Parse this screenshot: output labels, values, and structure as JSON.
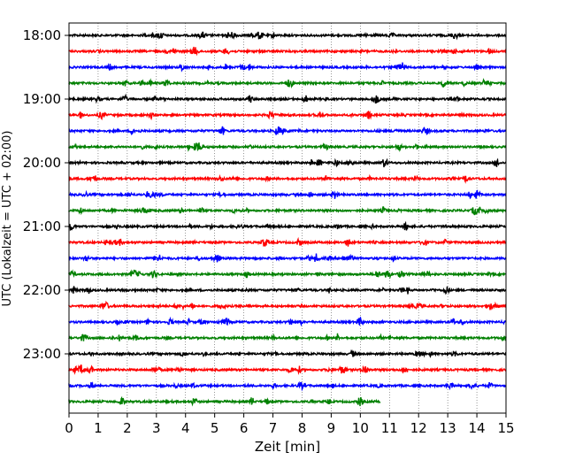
{
  "chart_data": {
    "type": "line",
    "title": "",
    "xlabel": "Zeit  [min]",
    "ylabel": "UTC (Lokalzeit = UTC + 02:00)",
    "xlim": [
      0,
      15
    ],
    "x_ticks": [
      0,
      1,
      2,
      3,
      4,
      5,
      6,
      7,
      8,
      9,
      10,
      11,
      12,
      13,
      14,
      15
    ],
    "y_ticks": [
      {
        "label": "18:00",
        "row": 0
      },
      {
        "label": "19:00",
        "row": 4
      },
      {
        "label": "20:00",
        "row": 8
      },
      {
        "label": "21:00",
        "row": 12
      },
      {
        "label": "22:00",
        "row": 16
      },
      {
        "label": "23:00",
        "row": 20
      }
    ],
    "rows_per_hour": 4,
    "minutes_per_row": 15,
    "row_count": 24,
    "trace_colors": [
      "#000000",
      "#ff0000",
      "#0000ff",
      "#008000"
    ],
    "last_row_end_minute": 10.7,
    "grid": {
      "x": true,
      "y": false
    }
  }
}
